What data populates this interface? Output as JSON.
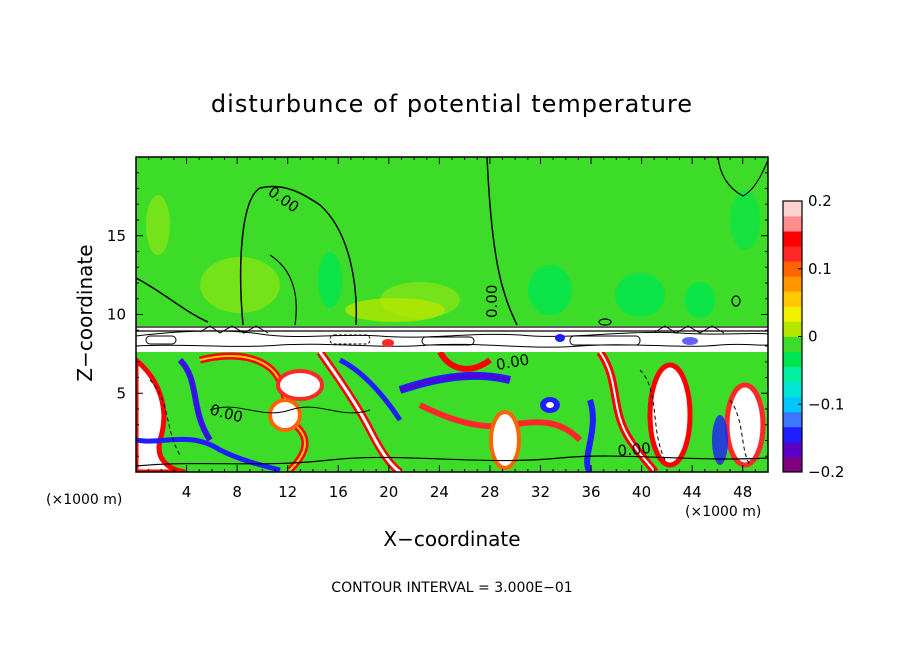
{
  "chart_data": {
    "type": "heatmap",
    "title": "disturbunce of potential temperature",
    "xlabel": "X−coordinate",
    "ylabel": "Z−coordinate",
    "x_unit": "(×1000 m)",
    "z_unit": "(×1000 m)",
    "xlim": [
      0,
      50
    ],
    "ylim": [
      0,
      20
    ],
    "x_ticks": [
      4,
      8,
      12,
      16,
      20,
      24,
      28,
      32,
      36,
      40,
      44,
      48
    ],
    "x_tick_labels": [
      "4",
      "8",
      "12",
      "16",
      "20",
      "24",
      "28",
      "32",
      "36",
      "40",
      "44",
      "48"
    ],
    "y_ticks": [
      5,
      10,
      15
    ],
    "y_tick_labels": [
      "5",
      "10",
      "15"
    ],
    "colorbar": {
      "range": [
        -0.2,
        0.2
      ],
      "labeled_ticks": [
        0.2,
        0.1,
        0,
        -0.1,
        -0.2
      ],
      "labels": [
        "0.2",
        "0.1",
        "0",
        "−0.1",
        "−0.2"
      ],
      "colors": [
        "#800080",
        "#5a00c8",
        "#1e1eff",
        "#3c78ff",
        "#00c8ff",
        "#00e6d2",
        "#00f0a0",
        "#00e650",
        "#3cdc28",
        "#b4e600",
        "#f0f000",
        "#ffc800",
        "#ff9600",
        "#ff6400",
        "#ff2828",
        "#ff0000",
        "#ff8c8c",
        "#ffd2d2"
      ]
    },
    "contour_labels": [
      {
        "text": "0.00",
        "x": 11.3,
        "z": 17.5
      },
      {
        "text": "0.00",
        "x": 29.5,
        "z": 11.0
      },
      {
        "text": "0.00",
        "x": 30.1,
        "z": 7.0
      },
      {
        "text": "0.00",
        "x": 7.4,
        "z": 3.7
      },
      {
        "text": "0.00",
        "x": 39.7,
        "z": 1.3
      }
    ],
    "contour_interval_text": "CONTOUR INTERVAL = 3.000E−01"
  }
}
